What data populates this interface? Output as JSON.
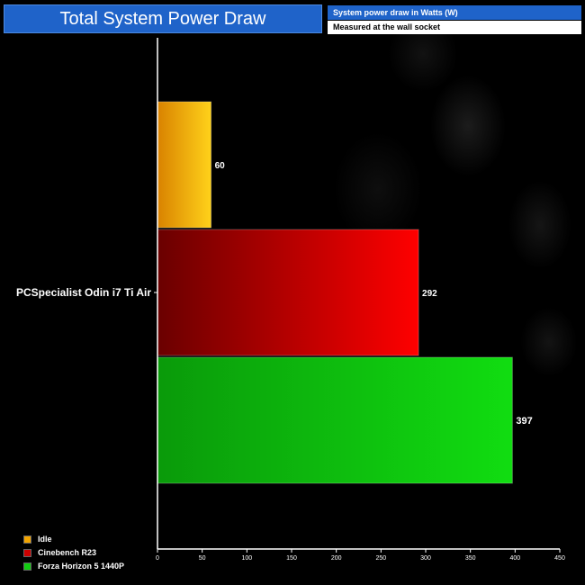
{
  "header": {
    "title": "Total System Power Draw",
    "info_line_1": "System power draw in Watts (W)",
    "info_line_2": "Measured at the wall socket"
  },
  "chart_data": {
    "type": "bar",
    "orientation": "horizontal",
    "categories": [
      "PCSpecialist Odin i7 Ti Air"
    ],
    "series": [
      {
        "name": "Idle",
        "values": [
          60
        ],
        "color": "#f2a400"
      },
      {
        "name": "Cinebench R23",
        "values": [
          292
        ],
        "color": "#e00000"
      },
      {
        "name": "Forza Horizon 5 1440P",
        "values": [
          397
        ],
        "color": "#11cc11"
      }
    ],
    "xlim": [
      0,
      450
    ],
    "xticks": [
      "0",
      "50",
      "100",
      "150",
      "200",
      "250",
      "300",
      "350",
      "400",
      "450"
    ],
    "grid": false,
    "legend_position": "bottom-left",
    "title": "Total System Power Draw"
  }
}
